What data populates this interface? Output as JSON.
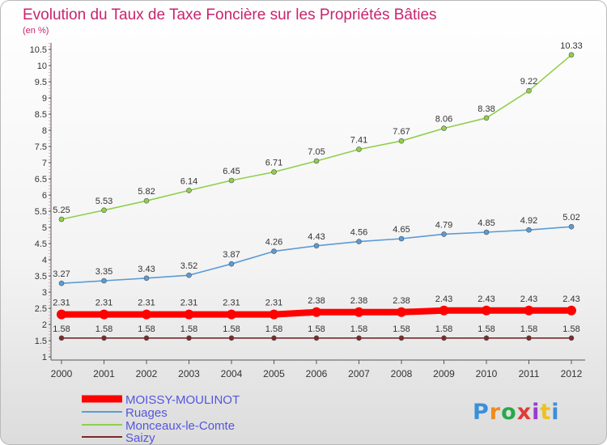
{
  "chart_data": {
    "type": "line",
    "title": "Evolution du Taux de Taxe Foncière sur les Propriétés Bâties",
    "ylabel": "(en %)",
    "xlabel": "",
    "categories": [
      "2000",
      "2001",
      "2002",
      "2003",
      "2004",
      "2005",
      "2006",
      "2007",
      "2008",
      "2009",
      "2010",
      "2011",
      "2012"
    ],
    "ylim": [
      1,
      10.5
    ],
    "yticks": [
      "1",
      "1.5",
      "2",
      "2.5",
      "3",
      "3.5",
      "4",
      "4.5",
      "5",
      "5.5",
      "6",
      "6.5",
      "7",
      "7.5",
      "8",
      "8.5",
      "9",
      "9.5",
      "10",
      "10.5"
    ],
    "grid": false,
    "legend_position": "bottom-left",
    "series": [
      {
        "name": "MOISSY-MOULINOT",
        "color": "#ff0000",
        "values": [
          2.31,
          2.31,
          2.31,
          2.31,
          2.31,
          2.31,
          2.38,
          2.38,
          2.38,
          2.43,
          2.43,
          2.43,
          2.43
        ],
        "labels": [
          "2.31",
          "2.31",
          "2.31",
          "2.31",
          "2.31",
          "2.31",
          "2.38",
          "2.38",
          "2.38",
          "2.43",
          "2.43",
          "2.43",
          "2.43"
        ]
      },
      {
        "name": "Ruages",
        "color": "#5b9bd5",
        "values": [
          3.27,
          3.35,
          3.43,
          3.52,
          3.87,
          4.26,
          4.43,
          4.56,
          4.65,
          4.79,
          4.85,
          4.92,
          5.02
        ],
        "labels": [
          "3.27",
          "3.35",
          "3.43",
          "3.52",
          "3.87",
          "4.26",
          "4.43",
          "4.56",
          "4.65",
          "4.79",
          "4.85",
          "4.92",
          "5.02"
        ]
      },
      {
        "name": "Monceaux-le-Comte",
        "color": "#8fd04a",
        "values": [
          5.25,
          5.53,
          5.82,
          6.14,
          6.45,
          6.71,
          7.05,
          7.41,
          7.67,
          8.06,
          8.38,
          9.22,
          10.33
        ],
        "labels": [
          "5.25",
          "5.53",
          "5.82",
          "6.14",
          "6.45",
          "6.71",
          "7.05",
          "7.41",
          "7.67",
          "8.06",
          "8.38",
          "9.22",
          "10.33"
        ]
      },
      {
        "name": "Saizy",
        "color": "#7a2a2a",
        "values": [
          1.58,
          1.58,
          1.58,
          1.58,
          1.58,
          1.58,
          1.58,
          1.58,
          1.58,
          1.58,
          1.58,
          1.58,
          1.58
        ],
        "labels": [
          "1.58",
          "1.58",
          "1.58",
          "1.58",
          "1.58",
          "1.58",
          "1.58",
          "1.58",
          "1.58",
          "1.58",
          "1.58",
          "1.58",
          "1.58"
        ]
      }
    ]
  },
  "logo": {
    "text": "Proxiti"
  }
}
